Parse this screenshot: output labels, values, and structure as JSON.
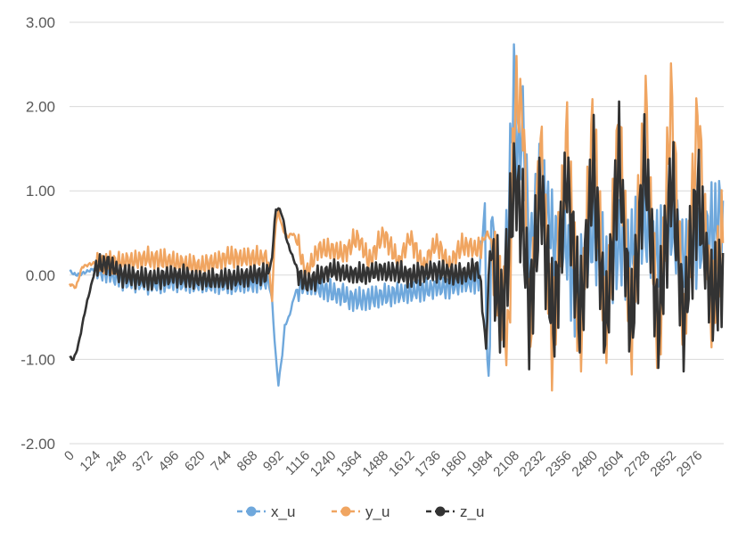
{
  "chart_data": {
    "type": "line",
    "title": "",
    "xlabel": "",
    "ylabel": "",
    "xlim": [
      0,
      3100
    ],
    "ylim": [
      -2.0,
      3.0
    ],
    "grid": true,
    "legend_position": "bottom",
    "y_ticks": [
      "3.00",
      "2.00",
      "1.00",
      "0.00",
      "-1.00",
      "-2.00"
    ],
    "x_ticks": [
      "0",
      "124",
      "248",
      "372",
      "496",
      "620",
      "744",
      "868",
      "992",
      "1116",
      "1240",
      "1364",
      "1488",
      "1612",
      "1736",
      "1860",
      "1984",
      "2108",
      "2232",
      "2356",
      "2480",
      "2604",
      "2728",
      "2852",
      "2976"
    ],
    "series": [
      {
        "name": "x_u",
        "color": "#6fa8dc",
        "points": [
          [
            0,
            0.05
          ],
          [
            30,
            0.0
          ],
          [
            60,
            0.02
          ],
          [
            124,
            0.08
          ],
          [
            248,
            -0.05
          ],
          [
            372,
            -0.1
          ],
          [
            496,
            -0.08
          ],
          [
            620,
            -0.1
          ],
          [
            744,
            -0.1
          ],
          [
            868,
            -0.1
          ],
          [
            940,
            -0.05
          ],
          [
            960,
            -0.3
          ],
          [
            975,
            -0.9
          ],
          [
            990,
            -1.3
          ],
          [
            1000,
            -1.1
          ],
          [
            1010,
            -0.9
          ],
          [
            1020,
            -0.6
          ],
          [
            1040,
            -0.5
          ],
          [
            1070,
            -0.2
          ],
          [
            1116,
            -0.1
          ],
          [
            1180,
            -0.15
          ],
          [
            1240,
            -0.2
          ],
          [
            1300,
            -0.25
          ],
          [
            1364,
            -0.3
          ],
          [
            1488,
            -0.25
          ],
          [
            1612,
            -0.2
          ],
          [
            1736,
            -0.15
          ],
          [
            1860,
            -0.1
          ],
          [
            1940,
            -0.05
          ],
          [
            1970,
            0.9
          ],
          [
            1975,
            -0.8
          ],
          [
            1990,
            -1.35
          ],
          [
            2000,
            1.15
          ],
          [
            2010,
            0.0
          ],
          [
            2050,
            -0.4
          ],
          [
            2070,
            0.2
          ],
          [
            2108,
            2.55
          ],
          [
            2120,
            1.3
          ],
          [
            2150,
            1.85
          ],
          [
            2180,
            0.2
          ],
          [
            2232,
            1.3
          ],
          [
            2290,
            0.4
          ],
          [
            2356,
            0.4
          ],
          [
            2400,
            -0.3
          ],
          [
            2480,
            0.5
          ],
          [
            2550,
            0.0
          ],
          [
            2604,
            0.4
          ],
          [
            2660,
            0.3
          ],
          [
            2728,
            0.6
          ],
          [
            2790,
            0.2
          ],
          [
            2852,
            0.6
          ],
          [
            2910,
            0.2
          ],
          [
            2976,
            0.4
          ],
          [
            3040,
            0.5
          ],
          [
            3100,
            0.8
          ]
        ]
      },
      {
        "name": "y_u",
        "color": "#f0a561",
        "points": [
          [
            0,
            -0.1
          ],
          [
            30,
            -0.15
          ],
          [
            60,
            0.1
          ],
          [
            124,
            0.15
          ],
          [
            248,
            0.15
          ],
          [
            372,
            0.2
          ],
          [
            496,
            0.15
          ],
          [
            620,
            0.1
          ],
          [
            744,
            0.2
          ],
          [
            868,
            0.2
          ],
          [
            940,
            0.2
          ],
          [
            960,
            -0.3
          ],
          [
            975,
            0.6
          ],
          [
            990,
            0.75
          ],
          [
            1010,
            0.55
          ],
          [
            1030,
            0.45
          ],
          [
            1060,
            0.5
          ],
          [
            1090,
            0.3
          ],
          [
            1116,
            0.0
          ],
          [
            1180,
            0.3
          ],
          [
            1240,
            0.3
          ],
          [
            1300,
            0.25
          ],
          [
            1364,
            0.45
          ],
          [
            1420,
            0.15
          ],
          [
            1488,
            0.5
          ],
          [
            1560,
            0.15
          ],
          [
            1612,
            0.45
          ],
          [
            1680,
            0.1
          ],
          [
            1736,
            0.4
          ],
          [
            1800,
            0.1
          ],
          [
            1860,
            0.35
          ],
          [
            1940,
            0.3
          ],
          [
            1980,
            0.5
          ],
          [
            2000,
            0.4
          ],
          [
            2040,
            -0.3
          ],
          [
            2080,
            -0.8
          ],
          [
            2108,
            2.1
          ],
          [
            2150,
            1.9
          ],
          [
            2180,
            -0.8
          ],
          [
            2232,
            1.6
          ],
          [
            2290,
            -0.9
          ],
          [
            2356,
            1.7
          ],
          [
            2420,
            -0.9
          ],
          [
            2480,
            1.9
          ],
          [
            2540,
            -0.8
          ],
          [
            2604,
            1.9
          ],
          [
            2660,
            -0.8
          ],
          [
            2728,
            2.1
          ],
          [
            2790,
            -1.0
          ],
          [
            2852,
            2.2
          ],
          [
            2910,
            -0.7
          ],
          [
            2976,
            1.9
          ],
          [
            3040,
            -0.4
          ],
          [
            3100,
            0.6
          ]
        ]
      },
      {
        "name": "z_u",
        "color": "#333333",
        "points": [
          [
            0,
            -0.98
          ],
          [
            20,
            -1.0
          ],
          [
            40,
            -0.85
          ],
          [
            60,
            -0.6
          ],
          [
            80,
            -0.35
          ],
          [
            100,
            -0.15
          ],
          [
            124,
            0.1
          ],
          [
            180,
            0.15
          ],
          [
            248,
            0.0
          ],
          [
            372,
            -0.05
          ],
          [
            496,
            0.0
          ],
          [
            620,
            -0.05
          ],
          [
            744,
            -0.05
          ],
          [
            868,
            0.0
          ],
          [
            940,
            0.0
          ],
          [
            960,
            0.2
          ],
          [
            975,
            0.75
          ],
          [
            990,
            0.8
          ],
          [
            1010,
            0.7
          ],
          [
            1030,
            0.4
          ],
          [
            1060,
            0.2
          ],
          [
            1090,
            0.0
          ],
          [
            1116,
            -0.1
          ],
          [
            1240,
            0.05
          ],
          [
            1364,
            0.0
          ],
          [
            1488,
            0.05
          ],
          [
            1612,
            0.0
          ],
          [
            1736,
            0.05
          ],
          [
            1860,
            0.0
          ],
          [
            1940,
            0.1
          ],
          [
            1975,
            -0.9
          ],
          [
            1990,
            0.3
          ],
          [
            2050,
            -0.5
          ],
          [
            2108,
            1.1
          ],
          [
            2150,
            0.6
          ],
          [
            2180,
            -0.5
          ],
          [
            2232,
            1.0
          ],
          [
            2290,
            -0.6
          ],
          [
            2356,
            1.2
          ],
          [
            2420,
            -0.6
          ],
          [
            2480,
            1.3
          ],
          [
            2540,
            -0.7
          ],
          [
            2604,
            1.4
          ],
          [
            2660,
            -0.7
          ],
          [
            2728,
            1.4
          ],
          [
            2790,
            -0.7
          ],
          [
            2852,
            1.2
          ],
          [
            2910,
            -0.6
          ],
          [
            2976,
            1.0
          ],
          [
            3040,
            -0.3
          ],
          [
            3100,
            0.1
          ]
        ]
      }
    ]
  }
}
